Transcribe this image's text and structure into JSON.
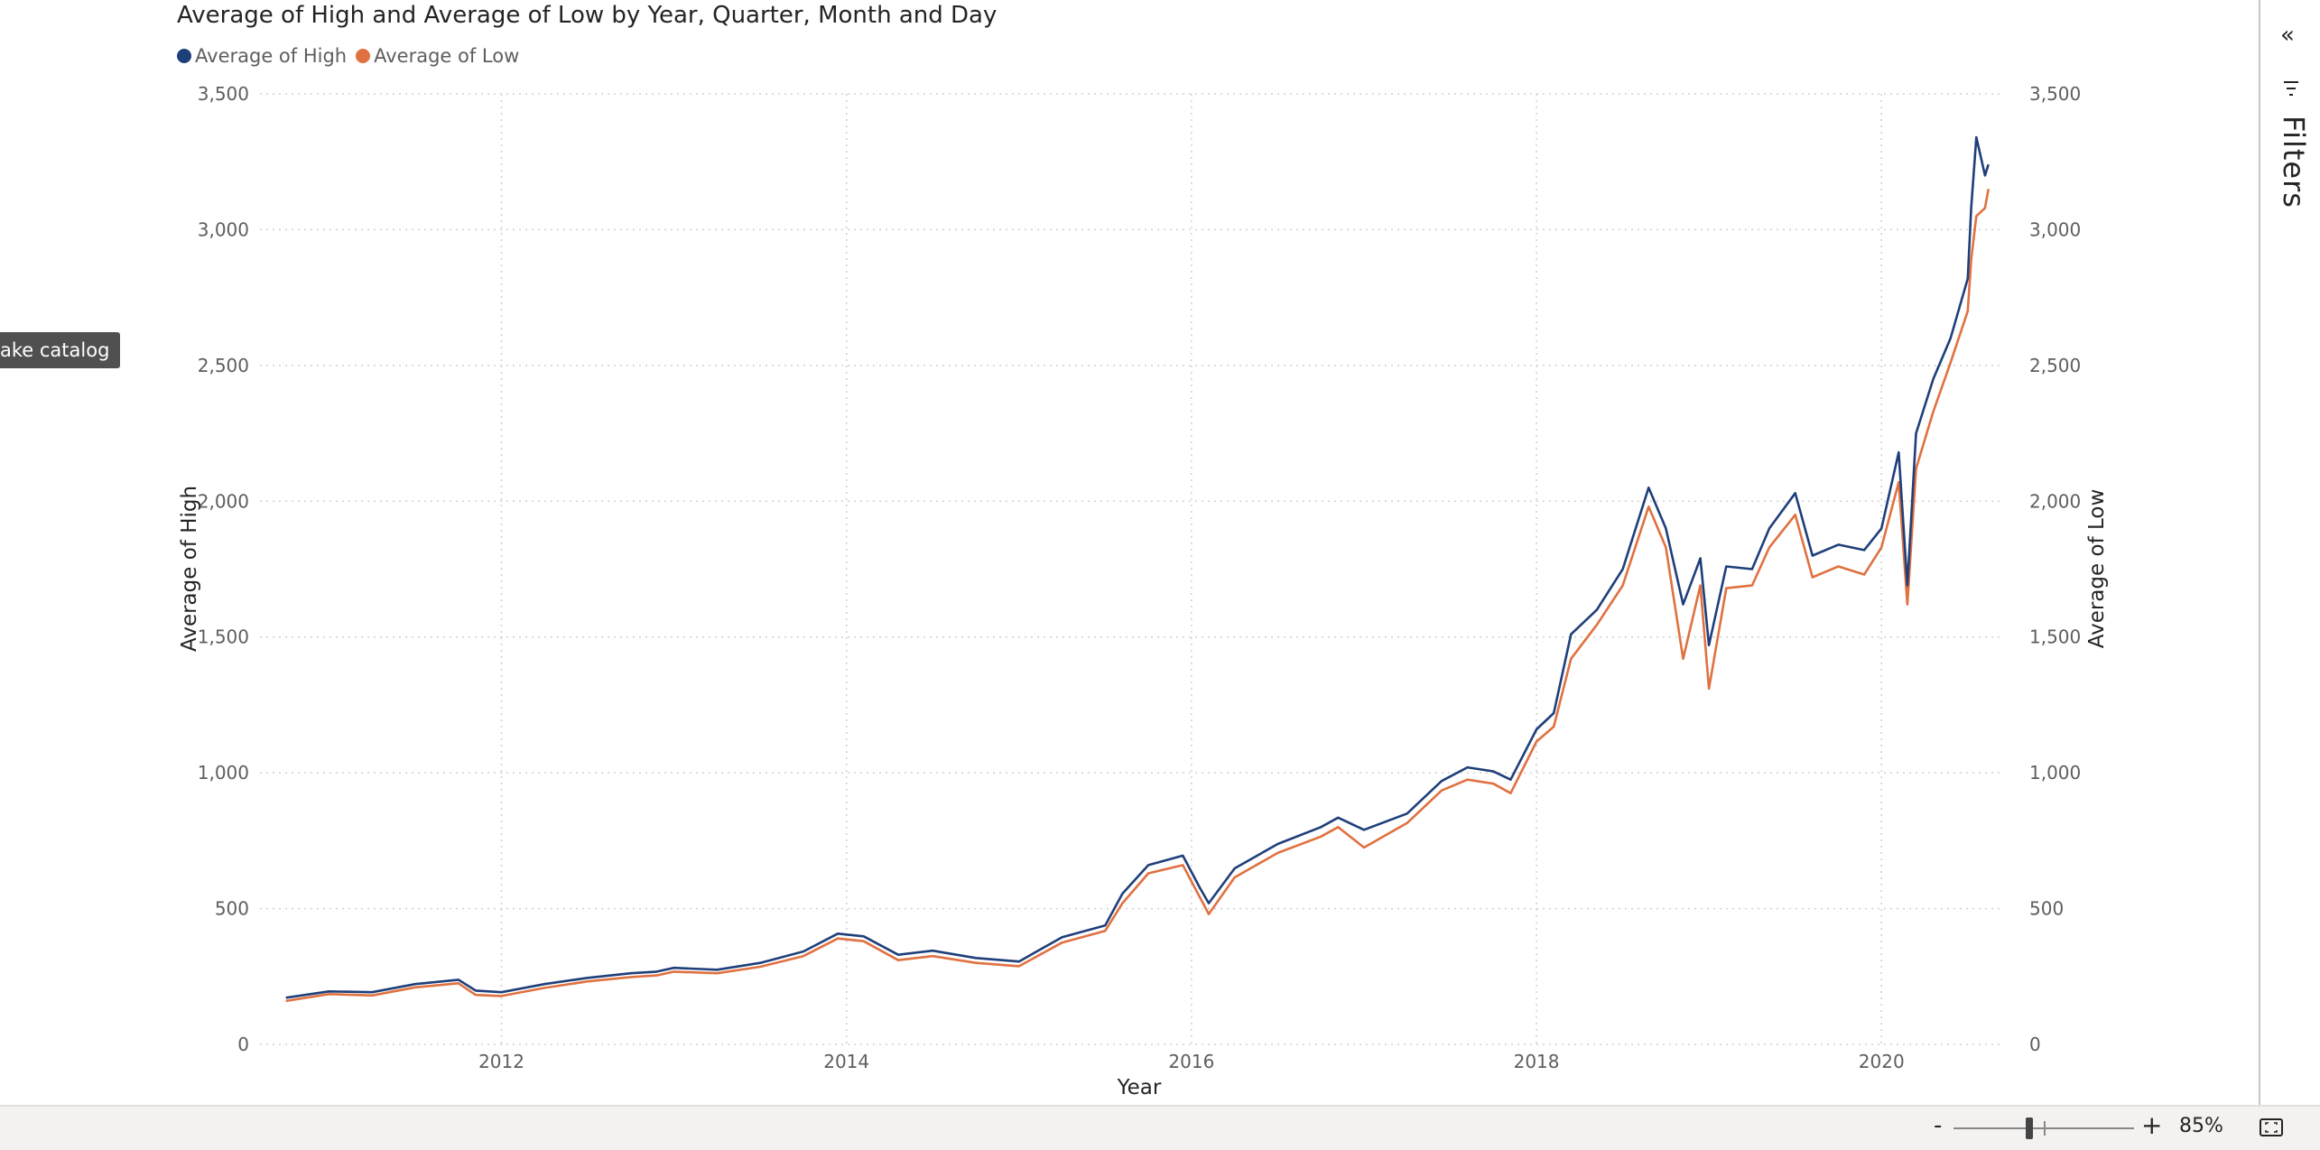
{
  "tooltip": {
    "text": "ake catalog"
  },
  "right_rail": {
    "collapse_glyph": "«",
    "filters_label": "Filters",
    "filter_icon": "filter-icon"
  },
  "zoom": {
    "minus": "-",
    "plus": "+",
    "value": "85%",
    "level_percent": 85,
    "fit_icon": "fit-to-page-icon"
  },
  "colors": {
    "high": "#1f3f7a",
    "low": "#e07140",
    "grid": "#d0d0d0",
    "axis_text": "#605e5c"
  },
  "chart_data": {
    "type": "line",
    "title": "Average of High and Average of Low by Year, Quarter, Month and Day",
    "xlabel": "Year",
    "ylabel_left": "Average of High",
    "ylabel_right": "Average of Low",
    "xlim": [
      2010.6,
      2020.7
    ],
    "ylim": [
      0,
      3500
    ],
    "x_ticks": [
      2012,
      2014,
      2016,
      2018,
      2020
    ],
    "x_tick_labels": [
      "2012",
      "2014",
      "2016",
      "2018",
      "2020"
    ],
    "y_ticks": [
      0,
      500,
      1000,
      1500,
      2000,
      2500,
      3000,
      3500
    ],
    "y_tick_labels": [
      "0",
      "500",
      "1,000",
      "1,500",
      "2,000",
      "2,500",
      "3,000",
      "3,500"
    ],
    "grid": true,
    "legend_position": "top-left",
    "series": [
      {
        "name": "Average of High",
        "x": [
          2010.75,
          2011.0,
          2011.25,
          2011.5,
          2011.75,
          2011.85,
          2012.0,
          2012.25,
          2012.5,
          2012.75,
          2012.9,
          2013.0,
          2013.25,
          2013.5,
          2013.75,
          2013.95,
          2014.1,
          2014.3,
          2014.5,
          2014.75,
          2015.0,
          2015.25,
          2015.5,
          2015.6,
          2015.75,
          2015.95,
          2016.05,
          2016.1,
          2016.25,
          2016.5,
          2016.75,
          2016.85,
          2017.0,
          2017.25,
          2017.45,
          2017.6,
          2017.75,
          2017.85,
          2018.0,
          2018.1,
          2018.2,
          2018.35,
          2018.5,
          2018.65,
          2018.75,
          2018.85,
          2018.95,
          2019.0,
          2019.1,
          2019.25,
          2019.35,
          2019.5,
          2019.6,
          2019.75,
          2019.9,
          2020.0,
          2020.1,
          2020.15,
          2020.2,
          2020.3,
          2020.4,
          2020.5,
          2020.52,
          2020.55,
          2020.6,
          2020.62
        ],
        "values": [
          172,
          195,
          192,
          222,
          238,
          198,
          192,
          222,
          245,
          262,
          268,
          282,
          275,
          300,
          342,
          408,
          398,
          330,
          345,
          318,
          305,
          395,
          438,
          555,
          660,
          695,
          575,
          520,
          648,
          738,
          800,
          835,
          790,
          850,
          970,
          1020,
          1005,
          975,
          1160,
          1220,
          1510,
          1600,
          1750,
          2050,
          1900,
          1620,
          1790,
          1470,
          1760,
          1750,
          1900,
          2030,
          1800,
          1840,
          1820,
          1900,
          2180,
          1690,
          2250,
          2450,
          2600,
          2820,
          3080,
          3340,
          3200,
          3240
        ]
      },
      {
        "name": "Average of Low",
        "x": [
          2010.75,
          2011.0,
          2011.25,
          2011.5,
          2011.75,
          2011.85,
          2012.0,
          2012.25,
          2012.5,
          2012.75,
          2012.9,
          2013.0,
          2013.25,
          2013.5,
          2013.75,
          2013.95,
          2014.1,
          2014.3,
          2014.5,
          2014.75,
          2015.0,
          2015.25,
          2015.5,
          2015.6,
          2015.75,
          2015.95,
          2016.05,
          2016.1,
          2016.25,
          2016.5,
          2016.75,
          2016.85,
          2017.0,
          2017.25,
          2017.45,
          2017.6,
          2017.75,
          2017.85,
          2018.0,
          2018.1,
          2018.2,
          2018.35,
          2018.5,
          2018.65,
          2018.75,
          2018.85,
          2018.95,
          2019.0,
          2019.1,
          2019.25,
          2019.35,
          2019.5,
          2019.6,
          2019.75,
          2019.9,
          2020.0,
          2020.1,
          2020.15,
          2020.2,
          2020.3,
          2020.4,
          2020.5,
          2020.52,
          2020.55,
          2020.6,
          2020.62
        ],
        "values": [
          160,
          185,
          180,
          210,
          225,
          182,
          178,
          208,
          232,
          248,
          254,
          268,
          262,
          286,
          325,
          390,
          380,
          310,
          325,
          300,
          288,
          375,
          418,
          520,
          630,
          660,
          540,
          480,
          615,
          705,
          765,
          800,
          725,
          815,
          935,
          975,
          960,
          925,
          1115,
          1170,
          1420,
          1545,
          1690,
          1980,
          1830,
          1420,
          1690,
          1310,
          1680,
          1690,
          1830,
          1950,
          1720,
          1760,
          1730,
          1830,
          2070,
          1620,
          2120,
          2330,
          2510,
          2700,
          2890,
          3050,
          3080,
          3150
        ]
      }
    ]
  }
}
